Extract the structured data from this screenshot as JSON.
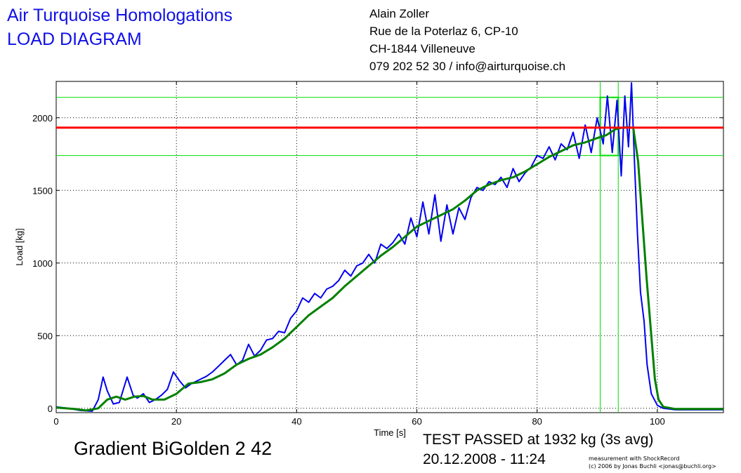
{
  "header": {
    "title_line1": "Air Turquoise Homologations",
    "title_line2": "LOAD DIAGRAM",
    "address": [
      "Alain Zoller",
      "Rue de la Poterlaz 6, CP-10",
      "CH-1844 Villeneuve",
      "079 202 52 30 / info@airturquoise.ch"
    ]
  },
  "footer": {
    "glider": "Gradient BiGolden 2 42",
    "verdict": "TEST PASSED at 1932 kg (3s avg)",
    "datetime": "20.12.2008 - 11:24",
    "credit_line1": "measurement with ShockRecord",
    "credit_line2": "(c) 2006 by Jonas Buchli <jonas@buchli.org>"
  },
  "colors": {
    "raw": "#0000ee",
    "avg": "#008000",
    "threshold": "#ff0000",
    "marker": "#00dd00",
    "grid": "#000000",
    "title": "#1010e8"
  },
  "chart_data": {
    "type": "line",
    "title": "",
    "xlabel": "Time [s]",
    "ylabel": "Load [kg]",
    "xlim": [
      0,
      111
    ],
    "ylim": [
      -30,
      2250
    ],
    "xticks": [
      0,
      20,
      40,
      60,
      80,
      100
    ],
    "yticks": [
      0,
      500,
      1000,
      1500,
      2000
    ],
    "grid": true,
    "threshold": 1932,
    "band": [
      1740,
      2140
    ],
    "window": [
      90.5,
      93.5
    ],
    "series": [
      {
        "key": "raw",
        "points": [
          [
            0,
            10
          ],
          [
            2,
            0
          ],
          [
            4,
            -15
          ],
          [
            6,
            -20
          ],
          [
            7,
            60
          ],
          [
            7.8,
            215
          ],
          [
            8.5,
            120
          ],
          [
            9.5,
            30
          ],
          [
            10.5,
            40
          ],
          [
            11.8,
            215
          ],
          [
            12.8,
            90
          ],
          [
            13.5,
            70
          ],
          [
            14.5,
            100
          ],
          [
            15.5,
            40
          ],
          [
            16.5,
            60
          ],
          [
            17.5,
            90
          ],
          [
            18.5,
            130
          ],
          [
            19.5,
            250
          ],
          [
            20.5,
            190
          ],
          [
            21.5,
            140
          ],
          [
            22.5,
            170
          ],
          [
            24,
            200
          ],
          [
            25,
            220
          ],
          [
            26,
            250
          ],
          [
            27,
            290
          ],
          [
            28,
            330
          ],
          [
            29,
            370
          ],
          [
            30,
            300
          ],
          [
            31,
            330
          ],
          [
            32,
            440
          ],
          [
            33,
            360
          ],
          [
            34,
            400
          ],
          [
            35,
            470
          ],
          [
            36,
            480
          ],
          [
            37,
            530
          ],
          [
            38,
            520
          ],
          [
            39,
            620
          ],
          [
            40,
            670
          ],
          [
            41,
            760
          ],
          [
            42,
            730
          ],
          [
            43,
            790
          ],
          [
            44,
            760
          ],
          [
            45,
            820
          ],
          [
            46,
            840
          ],
          [
            47,
            880
          ],
          [
            48,
            950
          ],
          [
            49,
            910
          ],
          [
            50,
            980
          ],
          [
            51,
            1000
          ],
          [
            52,
            1060
          ],
          [
            53,
            1000
          ],
          [
            54,
            1130
          ],
          [
            55,
            1100
          ],
          [
            56,
            1140
          ],
          [
            57,
            1200
          ],
          [
            58,
            1130
          ],
          [
            59,
            1310
          ],
          [
            60,
            1180
          ],
          [
            61,
            1420
          ],
          [
            62,
            1200
          ],
          [
            63,
            1470
          ],
          [
            64,
            1150
          ],
          [
            65,
            1400
          ],
          [
            66,
            1200
          ],
          [
            67,
            1380
          ],
          [
            68,
            1300
          ],
          [
            69,
            1450
          ],
          [
            70,
            1520
          ],
          [
            71,
            1500
          ],
          [
            72,
            1560
          ],
          [
            73,
            1540
          ],
          [
            74,
            1590
          ],
          [
            75,
            1520
          ],
          [
            76,
            1650
          ],
          [
            77,
            1560
          ],
          [
            78,
            1620
          ],
          [
            79,
            1660
          ],
          [
            80,
            1740
          ],
          [
            81,
            1720
          ],
          [
            82,
            1800
          ],
          [
            83,
            1710
          ],
          [
            84,
            1820
          ],
          [
            85,
            1780
          ],
          [
            86,
            1900
          ],
          [
            87,
            1720
          ],
          [
            88,
            1950
          ],
          [
            89,
            1760
          ],
          [
            90,
            2000
          ],
          [
            91,
            1820
          ],
          [
            91.7,
            2150
          ],
          [
            92.5,
            1760
          ],
          [
            93.3,
            2120
          ],
          [
            94,
            1600
          ],
          [
            94.6,
            2150
          ],
          [
            95.2,
            1800
          ],
          [
            95.7,
            2240
          ],
          [
            96.2,
            1700
          ],
          [
            96.7,
            1200
          ],
          [
            97.2,
            800
          ],
          [
            97.8,
            600
          ],
          [
            98.3,
            300
          ],
          [
            99,
            100
          ],
          [
            100,
            20
          ],
          [
            101,
            0
          ],
          [
            103,
            -10
          ],
          [
            106,
            -10
          ],
          [
            111,
            -10
          ]
        ]
      },
      {
        "key": "avg",
        "points": [
          [
            0,
            5
          ],
          [
            3,
            -5
          ],
          [
            5,
            -15
          ],
          [
            7,
            0
          ],
          [
            8.5,
            60
          ],
          [
            10,
            80
          ],
          [
            11.5,
            60
          ],
          [
            13,
            80
          ],
          [
            14.5,
            85
          ],
          [
            16,
            60
          ],
          [
            18,
            60
          ],
          [
            20,
            100
          ],
          [
            22,
            170
          ],
          [
            24,
            180
          ],
          [
            26,
            200
          ],
          [
            28,
            240
          ],
          [
            30,
            300
          ],
          [
            32,
            340
          ],
          [
            34,
            370
          ],
          [
            36,
            420
          ],
          [
            38,
            480
          ],
          [
            40,
            560
          ],
          [
            42,
            640
          ],
          [
            44,
            700
          ],
          [
            46,
            760
          ],
          [
            48,
            840
          ],
          [
            50,
            910
          ],
          [
            52,
            980
          ],
          [
            54,
            1050
          ],
          [
            56,
            1110
          ],
          [
            58,
            1180
          ],
          [
            60,
            1250
          ],
          [
            62,
            1290
          ],
          [
            64,
            1330
          ],
          [
            66,
            1370
          ],
          [
            68,
            1430
          ],
          [
            70,
            1500
          ],
          [
            72,
            1540
          ],
          [
            74,
            1570
          ],
          [
            76,
            1590
          ],
          [
            78,
            1630
          ],
          [
            80,
            1680
          ],
          [
            82,
            1730
          ],
          [
            84,
            1770
          ],
          [
            86,
            1810
          ],
          [
            88,
            1830
          ],
          [
            90,
            1860
          ],
          [
            91.5,
            1880
          ],
          [
            93,
            1920
          ],
          [
            94,
            1930
          ],
          [
            95,
            1935
          ],
          [
            96,
            1930
          ],
          [
            96.8,
            1700
          ],
          [
            97.5,
            1300
          ],
          [
            98.2,
            900
          ],
          [
            99,
            500
          ],
          [
            99.6,
            200
          ],
          [
            100.2,
            60
          ],
          [
            101,
            10
          ],
          [
            103,
            -5
          ],
          [
            106,
            -5
          ],
          [
            111,
            -5
          ]
        ]
      }
    ]
  }
}
